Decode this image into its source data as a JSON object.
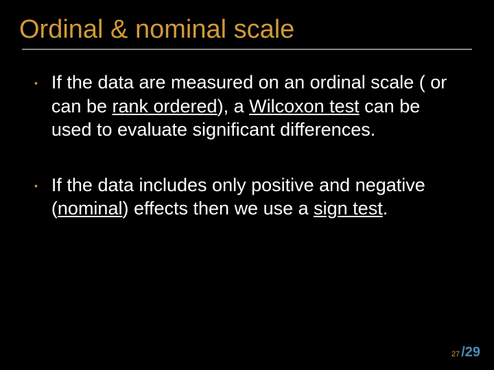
{
  "slide": {
    "title": "Ordinal & nominal scale",
    "title_color": "#d19a3a",
    "title_fontsize": 38,
    "underline_color": "#888888",
    "background_color": "#000000",
    "body_color": "#ffffff",
    "body_fontsize": 27,
    "bullet_color": "#d19a3a",
    "bullets": [
      {
        "segments": [
          {
            "text": "If the data are measured on an ordinal scale ( or can be ",
            "underline": false
          },
          {
            "text": "rank ordered",
            "underline": true
          },
          {
            "text": "), a ",
            "underline": false
          },
          {
            "text": "Wilcoxon test",
            "underline": true
          },
          {
            "text": " can be used to evaluate significant differences.",
            "underline": false
          }
        ]
      },
      {
        "segments": [
          {
            "text": "If the data includes only positive and negative (",
            "underline": false
          },
          {
            "text": "nominal",
            "underline": true
          },
          {
            "text": ") effects then we use a ",
            "underline": false
          },
          {
            "text": "sign test",
            "underline": true
          },
          {
            "text": ".",
            "underline": false
          }
        ]
      }
    ]
  },
  "footer": {
    "current_page": "27",
    "total_label": "/29",
    "current_color": "#d19a3a",
    "total_color": "#4a8ab8"
  }
}
